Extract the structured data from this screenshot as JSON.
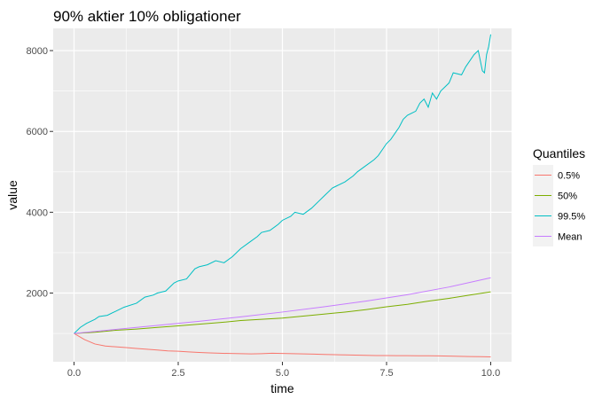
{
  "chart_data": {
    "type": "line",
    "title": "90% aktier 10% obligationer",
    "xlabel": "time",
    "ylabel": "value",
    "xlim": [
      -0.5,
      10.5
    ],
    "ylim": [
      300,
      8550
    ],
    "x_ticks": [
      {
        "value": 0,
        "label": "0.0"
      },
      {
        "value": 2.5,
        "label": "2.5"
      },
      {
        "value": 5,
        "label": "5.0"
      },
      {
        "value": 7.5,
        "label": "7.5"
      },
      {
        "value": 10,
        "label": "10.0"
      }
    ],
    "y_ticks": [
      {
        "value": 2000,
        "label": "2000"
      },
      {
        "value": 4000,
        "label": "4000"
      },
      {
        "value": 6000,
        "label": "6000"
      },
      {
        "value": 8000,
        "label": "8000"
      }
    ],
    "grid": true,
    "legend": {
      "title": "Quantiles",
      "position": "right"
    },
    "series": [
      {
        "name": "0.5%",
        "color": "#F8766D",
        "points": [
          [
            0,
            1000
          ],
          [
            0.25,
            850
          ],
          [
            0.5,
            740
          ],
          [
            0.75,
            690
          ],
          [
            1,
            670
          ],
          [
            1.25,
            650
          ],
          [
            1.5,
            630
          ],
          [
            1.75,
            610
          ],
          [
            2,
            590
          ],
          [
            2.25,
            570
          ],
          [
            2.5,
            560
          ],
          [
            2.75,
            545
          ],
          [
            3,
            530
          ],
          [
            3.25,
            520
          ],
          [
            3.5,
            510
          ],
          [
            3.75,
            505
          ],
          [
            4,
            500
          ],
          [
            4.25,
            495
          ],
          [
            4.5,
            500
          ],
          [
            4.75,
            510
          ],
          [
            5,
            505
          ],
          [
            5.25,
            500
          ],
          [
            5.5,
            495
          ],
          [
            5.75,
            490
          ],
          [
            6,
            480
          ],
          [
            6.25,
            475
          ],
          [
            6.5,
            470
          ],
          [
            6.75,
            465
          ],
          [
            7,
            460
          ],
          [
            7.25,
            455
          ],
          [
            7.5,
            455
          ],
          [
            7.75,
            450
          ],
          [
            8,
            450
          ],
          [
            8.25,
            448
          ],
          [
            8.5,
            447
          ],
          [
            8.75,
            445
          ],
          [
            9,
            440
          ],
          [
            9.25,
            435
          ],
          [
            9.5,
            430
          ],
          [
            9.75,
            425
          ],
          [
            10,
            420
          ]
        ]
      },
      {
        "name": "50%",
        "color": "#7CAE00",
        "points": [
          [
            0,
            1000
          ],
          [
            0.5,
            1030
          ],
          [
            1,
            1080
          ],
          [
            1.5,
            1110
          ],
          [
            2,
            1150
          ],
          [
            2.5,
            1190
          ],
          [
            3,
            1230
          ],
          [
            3.5,
            1270
          ],
          [
            4,
            1320
          ],
          [
            4.5,
            1350
          ],
          [
            5,
            1380
          ],
          [
            5.5,
            1430
          ],
          [
            6,
            1480
          ],
          [
            6.5,
            1530
          ],
          [
            7,
            1590
          ],
          [
            7.5,
            1660
          ],
          [
            8,
            1720
          ],
          [
            8.5,
            1800
          ],
          [
            9,
            1870
          ],
          [
            9.5,
            1950
          ],
          [
            10,
            2030
          ]
        ]
      },
      {
        "name": "99.5%",
        "color": "#00BFC4",
        "points": [
          [
            0,
            1000
          ],
          [
            0.15,
            1150
          ],
          [
            0.3,
            1250
          ],
          [
            0.5,
            1350
          ],
          [
            0.6,
            1420
          ],
          [
            0.8,
            1450
          ],
          [
            1,
            1550
          ],
          [
            1.2,
            1650
          ],
          [
            1.5,
            1750
          ],
          [
            1.7,
            1900
          ],
          [
            1.9,
            1950
          ],
          [
            2,
            2000
          ],
          [
            2.2,
            2050
          ],
          [
            2.4,
            2250
          ],
          [
            2.5,
            2300
          ],
          [
            2.7,
            2350
          ],
          [
            2.9,
            2600
          ],
          [
            3,
            2650
          ],
          [
            3.2,
            2700
          ],
          [
            3.4,
            2800
          ],
          [
            3.6,
            2750
          ],
          [
            3.8,
            2900
          ],
          [
            4,
            3100
          ],
          [
            4.2,
            3250
          ],
          [
            4.4,
            3400
          ],
          [
            4.5,
            3500
          ],
          [
            4.7,
            3550
          ],
          [
            4.9,
            3700
          ],
          [
            5,
            3800
          ],
          [
            5.2,
            3900
          ],
          [
            5.3,
            4000
          ],
          [
            5.5,
            3950
          ],
          [
            5.7,
            4100
          ],
          [
            5.9,
            4300
          ],
          [
            6,
            4400
          ],
          [
            6.2,
            4600
          ],
          [
            6.3,
            4650
          ],
          [
            6.5,
            4750
          ],
          [
            6.7,
            4900
          ],
          [
            6.8,
            5000
          ],
          [
            7,
            5150
          ],
          [
            7.2,
            5300
          ],
          [
            7.3,
            5400
          ],
          [
            7.5,
            5700
          ],
          [
            7.6,
            5800
          ],
          [
            7.8,
            6100
          ],
          [
            7.9,
            6300
          ],
          [
            8,
            6400
          ],
          [
            8.2,
            6500
          ],
          [
            8.3,
            6700
          ],
          [
            8.4,
            6800
          ],
          [
            8.5,
            6600
          ],
          [
            8.6,
            6950
          ],
          [
            8.7,
            6800
          ],
          [
            8.8,
            7000
          ],
          [
            9,
            7200
          ],
          [
            9.1,
            7450
          ],
          [
            9.3,
            7400
          ],
          [
            9.4,
            7600
          ],
          [
            9.6,
            7900
          ],
          [
            9.7,
            8000
          ],
          [
            9.8,
            7500
          ],
          [
            9.85,
            7450
          ],
          [
            9.9,
            7900
          ],
          [
            9.95,
            8100
          ],
          [
            10,
            8400
          ]
        ]
      },
      {
        "name": "Mean",
        "color": "#C77CFF",
        "points": [
          [
            0,
            1000
          ],
          [
            1,
            1100
          ],
          [
            2,
            1200
          ],
          [
            3,
            1300
          ],
          [
            4,
            1410
          ],
          [
            5,
            1530
          ],
          [
            6,
            1660
          ],
          [
            7,
            1800
          ],
          [
            8,
            1960
          ],
          [
            9,
            2150
          ],
          [
            10,
            2380
          ]
        ]
      }
    ]
  }
}
